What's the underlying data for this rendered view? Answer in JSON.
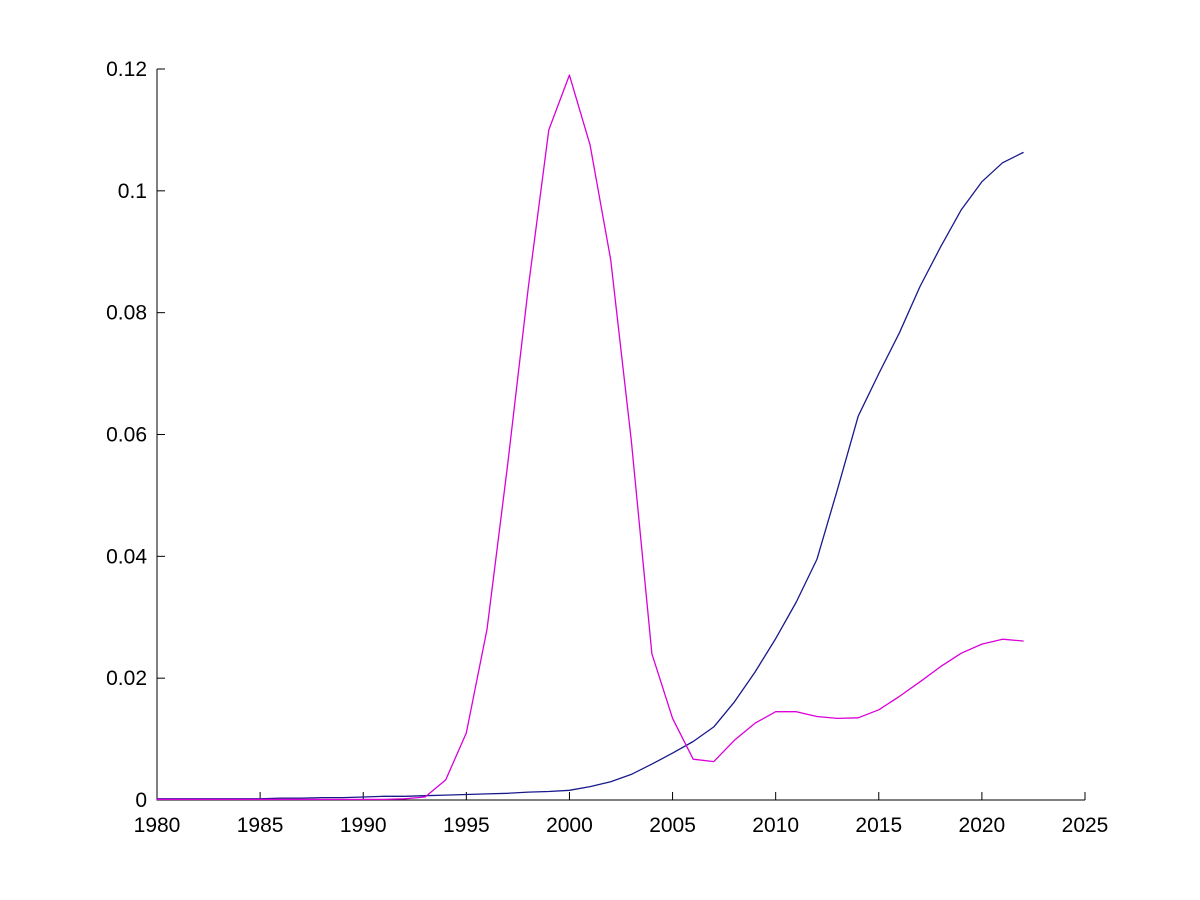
{
  "figure": {
    "background": "#ffffff",
    "axis_color": "#000000"
  },
  "chart_data": {
    "type": "line",
    "title": "",
    "xlabel": "",
    "ylabel": "",
    "xlim": [
      1980,
      2025
    ],
    "ylim": [
      0,
      0.12
    ],
    "grid": false,
    "legend": "none",
    "x_ticks": [
      1980,
      1985,
      1990,
      1995,
      2000,
      2005,
      2010,
      2015,
      2020,
      2025
    ],
    "x_tick_labels": [
      "1980",
      "1985",
      "1990",
      "1995",
      "2000",
      "2005",
      "2010",
      "2015",
      "2020",
      "2025"
    ],
    "y_ticks": [
      0,
      0.02,
      0.04,
      0.06,
      0.08,
      0.1,
      0.12
    ],
    "y_tick_labels": [
      "0",
      "0.02",
      "0.04",
      "0.06",
      "0.08",
      "0.1",
      "0.12"
    ],
    "x": [
      1980,
      1981,
      1982,
      1983,
      1984,
      1985,
      1986,
      1987,
      1988,
      1989,
      1990,
      1991,
      1992,
      1993,
      1994,
      1995,
      1996,
      1997,
      1998,
      1999,
      2000,
      2001,
      2002,
      2003,
      2004,
      2005,
      2006,
      2007,
      2008,
      2009,
      2010,
      2011,
      2012,
      2013,
      2014,
      2015,
      2016,
      2017,
      2018,
      2019,
      2020,
      2021,
      2022
    ],
    "series": [
      {
        "name": "dark-blue-line",
        "color": "#19198C",
        "values": [
          0.0002,
          0.0002,
          0.0002,
          0.0002,
          0.0002,
          0.0002,
          0.0003,
          0.0003,
          0.0004,
          0.0004,
          0.0005,
          0.0006,
          0.0006,
          0.0007,
          0.0008,
          0.0009,
          0.001,
          0.0011,
          0.0013,
          0.0014,
          0.0016,
          0.0022,
          0.003,
          0.0042,
          0.0059,
          0.0077,
          0.0096,
          0.012,
          0.0161,
          0.021,
          0.0265,
          0.0325,
          0.0395,
          0.051,
          0.063,
          0.07,
          0.0767,
          0.0843,
          0.0908,
          0.0969,
          0.1015,
          0.1046,
          0.1063
        ]
      },
      {
        "name": "magenta-line",
        "color": "#D900D9",
        "values": [
          0.0001,
          0.0001,
          0.0001,
          0.0001,
          0.0001,
          0.0001,
          0.0001,
          0.0001,
          0.0001,
          0.0001,
          0.0001,
          0.0001,
          0.0002,
          0.0005,
          0.0033,
          0.011,
          0.028,
          0.055,
          0.084,
          0.11,
          0.119,
          0.1075,
          0.0887,
          0.059,
          0.024,
          0.0134,
          0.0067,
          0.0063,
          0.0098,
          0.0126,
          0.0145,
          0.0145,
          0.0137,
          0.0134,
          0.0135,
          0.0148,
          0.017,
          0.0194,
          0.0219,
          0.0241,
          0.0256,
          0.0264,
          0.0261
        ]
      }
    ]
  }
}
